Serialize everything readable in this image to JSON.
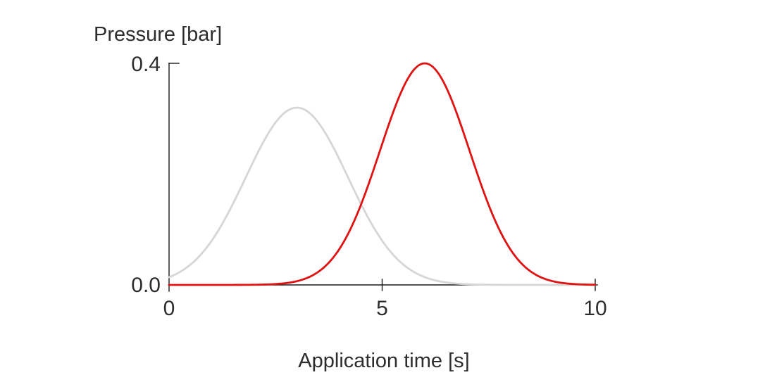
{
  "chart_data": {
    "type": "line",
    "title": "",
    "ylabel": "Pressure [bar]",
    "xlabel": "Application time [s]",
    "xlim": [
      0,
      10
    ],
    "ylim": [
      0,
      0.4
    ],
    "grid": false,
    "legend": "none",
    "axis_color": "#1a1a1a",
    "x_tick_values": [
      0,
      5,
      10
    ],
    "x_tick_labels": [
      "0",
      "5",
      "10"
    ],
    "y_tick_values": [
      0.0,
      0.4
    ],
    "y_tick_labels": [
      "0.0",
      "0.4"
    ],
    "series": [
      {
        "id": "gray-curve",
        "name": "gray curve",
        "color": "#d6d6d6",
        "shape": "gaussian",
        "peak": 0.32,
        "mean": 3,
        "sigma": 1.2,
        "x": [
          0,
          0.5,
          1,
          1.5,
          2,
          2.5,
          3,
          3.5,
          4,
          4.5,
          5,
          5.5,
          6,
          6.5,
          7,
          7.5,
          8,
          8.5,
          9,
          9.5,
          10
        ],
        "values": [
          0.0141,
          0.0365,
          0.0798,
          0.1465,
          0.2261,
          0.2934,
          0.32,
          0.2934,
          0.2261,
          0.1465,
          0.0798,
          0.0365,
          0.0141,
          0.0046,
          0.0012,
          0.0003,
          0.0001,
          0,
          0,
          0,
          0
        ]
      },
      {
        "id": "red-curve",
        "name": "red curve",
        "color": "#e01212",
        "shape": "gaussian",
        "peak": 0.4,
        "mean": 6,
        "sigma": 1.05,
        "x": [
          0,
          0.5,
          1,
          1.5,
          2,
          2.5,
          3,
          3.5,
          4,
          4.5,
          5,
          5.5,
          6,
          6.5,
          7,
          7.5,
          8,
          8.5,
          9,
          9.5,
          10
        ],
        "values": [
          0,
          0,
          0,
          0,
          0.0003,
          0.0015,
          0.0067,
          0.0235,
          0.0652,
          0.1442,
          0.2542,
          0.3571,
          0.4,
          0.3571,
          0.2542,
          0.1442,
          0.0652,
          0.0235,
          0.0067,
          0.0015,
          0.0003
        ]
      }
    ]
  }
}
